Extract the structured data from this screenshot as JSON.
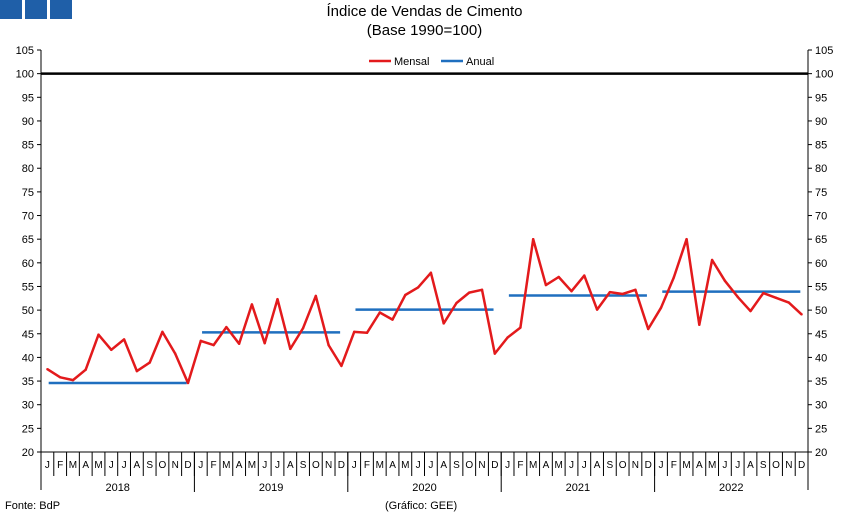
{
  "header": {
    "logo_blocks": 3,
    "logo_color": "#1f5fa8"
  },
  "chart_data": {
    "type": "line",
    "title": "Índice de Vendas de Cimento",
    "subtitle": "(Base 1990=100)",
    "ylim": [
      20,
      105
    ],
    "yticks": [
      20,
      25,
      30,
      35,
      40,
      45,
      50,
      55,
      60,
      65,
      70,
      75,
      80,
      85,
      90,
      95,
      100,
      105
    ],
    "y_axis_both_sides": true,
    "grid": false,
    "legend_position": "top-center",
    "month_labels": [
      "J",
      "F",
      "M",
      "A",
      "M",
      "J",
      "J",
      "A",
      "S",
      "O",
      "N",
      "D"
    ],
    "years": [
      "2018",
      "2019",
      "2020",
      "2021",
      "2022"
    ],
    "reference_line": {
      "value": 100,
      "color": "#000000"
    },
    "series": [
      {
        "name": "Mensal",
        "color": "#e31a1c",
        "type": "monthly",
        "values": [
          37.5,
          35.8,
          35.2,
          37.4,
          44.8,
          41.6,
          43.8,
          37.1,
          38.9,
          45.4,
          40.8,
          34.6,
          43.5,
          42.6,
          46.4,
          42.9,
          51.2,
          43.0,
          52.3,
          41.8,
          46.2,
          53.0,
          42.6,
          38.2,
          45.4,
          45.2,
          49.5,
          48.0,
          53.2,
          54.8,
          57.9,
          47.2,
          51.5,
          53.7,
          54.3,
          40.8,
          44.2,
          46.3,
          65.0,
          55.3,
          57.0,
          54.0,
          57.3,
          50.1,
          53.8,
          53.4,
          54.3,
          46.0,
          50.5,
          56.9,
          65.0,
          46.9,
          60.6,
          56.2,
          52.8,
          49.8,
          53.6,
          52.6,
          51.6,
          49.1
        ]
      },
      {
        "name": "Anual",
        "color": "#1f6fbf",
        "type": "annual",
        "values": [
          34.6,
          45.3,
          50.1,
          53.1,
          53.9
        ]
      }
    ]
  },
  "footer": {
    "source": "Fonte: BdP",
    "credit": "(Gráfico: GEE)"
  }
}
